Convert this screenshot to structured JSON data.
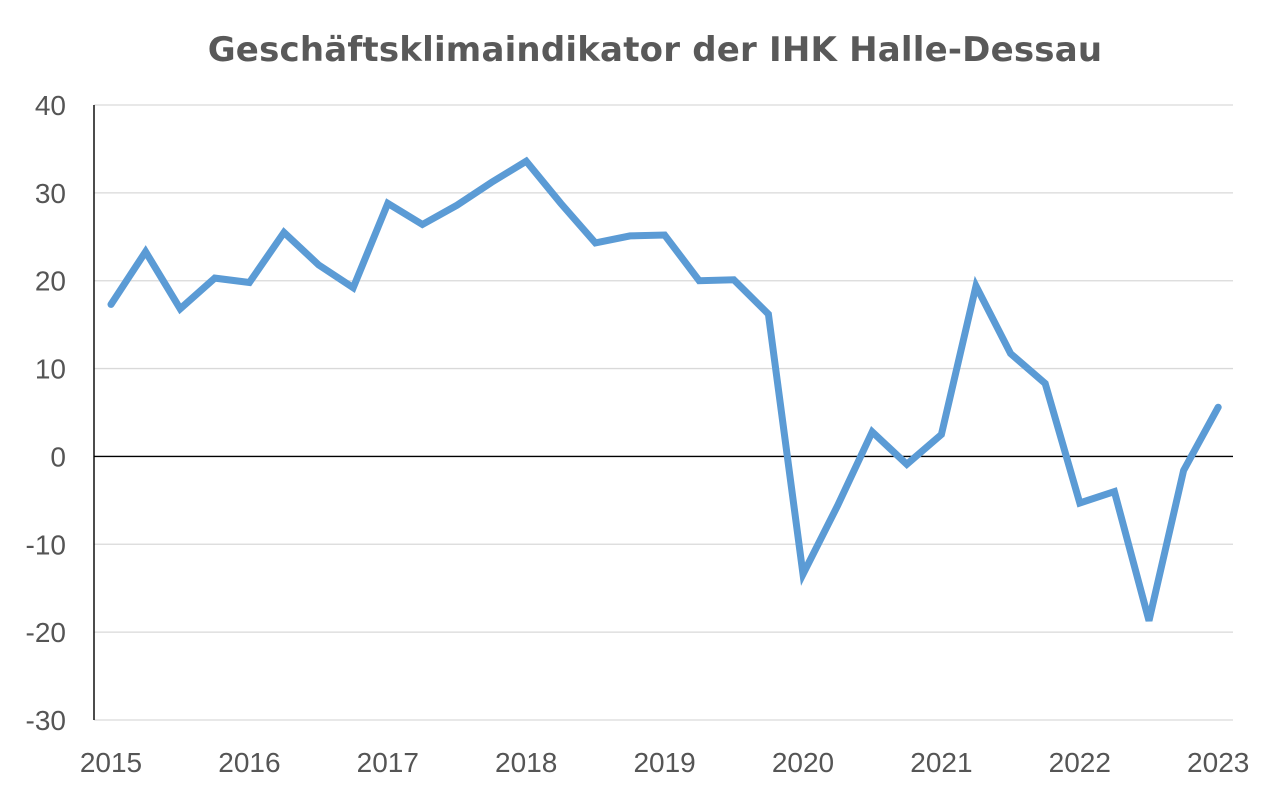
{
  "chart_data": {
    "type": "line",
    "title": "Geschäftsklimaindikator der IHK Halle-Dessau",
    "xlabel": "",
    "ylabel": "",
    "ylim": [
      -30,
      40
    ],
    "yticks": [
      40,
      30,
      20,
      10,
      0,
      -10,
      -20,
      -30
    ],
    "yticklabels": [
      "40",
      "30",
      "20",
      "10",
      "0",
      "-10",
      "-20",
      "-30"
    ],
    "xticklabels": [
      "2015",
      "2016",
      "2017",
      "2018",
      "2019",
      "2020",
      "2021",
      "2022",
      "2023"
    ],
    "grid": true,
    "legend": "none",
    "series": [
      {
        "color": "#5B9BD5",
        "x": [
          "2015 Q1",
          "2015 Q2",
          "2015 Q3",
          "2015 Q4",
          "2016 Q1",
          "2016 Q2",
          "2016 Q3",
          "2016 Q4",
          "2017 Q1",
          "2017 Q2",
          "2017 Q3",
          "2017 Q4",
          "2018 Q1",
          "2018 Q2",
          "2018 Q3",
          "2018 Q4",
          "2019 Q1",
          "2019 Q2",
          "2019 Q3",
          "2019 Q4",
          "2020 Q1",
          "2020 Q2",
          "2020 Q3",
          "2020 Q4",
          "2021 Q1",
          "2021 Q2",
          "2021 Q3",
          "2021 Q4",
          "2022 Q1",
          "2022 Q2",
          "2022 Q3",
          "2022 Q4",
          "2023 Q1"
        ],
        "values": [
          17.3,
          23.3,
          16.8,
          20.3,
          19.8,
          25.5,
          21.8,
          19.2,
          28.8,
          26.4,
          28.6,
          31.2,
          33.6,
          28.8,
          24.3,
          25.1,
          25.2,
          20.0,
          20.1,
          16.2,
          -13.4,
          -5.6,
          2.8,
          -0.9,
          2.5,
          19.4,
          11.7,
          8.3,
          -5.3,
          -4.0,
          -18.7,
          -1.6,
          5.6
        ]
      }
    ]
  }
}
